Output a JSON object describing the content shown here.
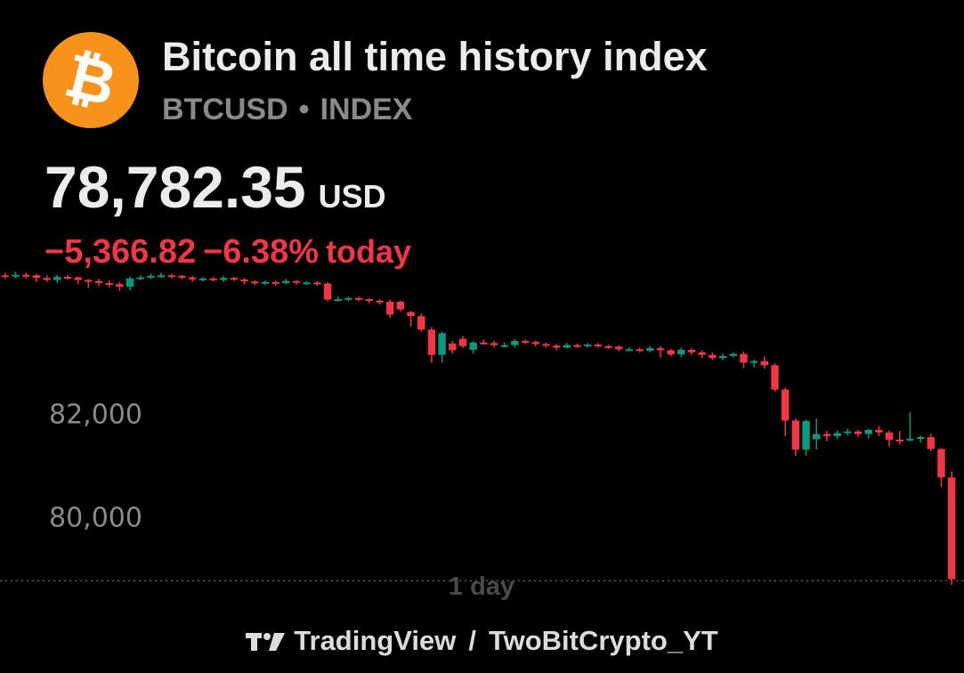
{
  "header": {
    "logo_icon": "bitcoin-icon",
    "logo_glyph": "₿",
    "logo_color": "#f7931a",
    "title": "Bitcoin all time history index",
    "symbol": "BTCUSD",
    "separator": "•",
    "type": "INDEX"
  },
  "quote": {
    "price": "78,782.35",
    "currency": "USD",
    "change": "−5,366.82",
    "change_pct": "−6.38%",
    "period": "today",
    "negative_color": "#f23645"
  },
  "footer": {
    "brand_icon": "tradingview-logo-icon",
    "brand": "TradingView",
    "separator": "/",
    "author": "TwoBitCrypto_YT"
  },
  "chart_data": {
    "type": "candlestick",
    "interval_label": "1 day",
    "ylim": [
      78650,
      84850
    ],
    "yticks": [
      {
        "value": 82000,
        "label": "82,000"
      },
      {
        "value": 80000,
        "label": "80,000"
      }
    ],
    "last_price_line": 78782.35,
    "up_color": "#089981",
    "down_color": "#f23645",
    "candles": [
      [
        84690,
        84670,
        84740,
        84620
      ],
      [
        84670,
        84700,
        84760,
        84630
      ],
      [
        84700,
        84690,
        84740,
        84630
      ],
      [
        84690,
        84640,
        84720,
        84560
      ],
      [
        84640,
        84600,
        84690,
        84560
      ],
      [
        84600,
        84660,
        84700,
        84540
      ],
      [
        84660,
        84650,
        84700,
        84610
      ],
      [
        84650,
        84600,
        84670,
        84520
      ],
      [
        84600,
        84580,
        84620,
        84450
      ],
      [
        84580,
        84540,
        84620,
        84480
      ],
      [
        84540,
        84520,
        84590,
        84460
      ],
      [
        84520,
        84470,
        84560,
        84390
      ],
      [
        84470,
        84630,
        84670,
        84400
      ],
      [
        84630,
        84650,
        84690,
        84590
      ],
      [
        84650,
        84680,
        84720,
        84620
      ],
      [
        84680,
        84690,
        84740,
        84640
      ],
      [
        84690,
        84680,
        84720,
        84630
      ],
      [
        84680,
        84650,
        84700,
        84610
      ],
      [
        84650,
        84610,
        84680,
        84560
      ],
      [
        84610,
        84630,
        84660,
        84570
      ],
      [
        84630,
        84600,
        84660,
        84570
      ],
      [
        84600,
        84640,
        84680,
        84560
      ],
      [
        84640,
        84610,
        84660,
        84580
      ],
      [
        84610,
        84570,
        84640,
        84510
      ],
      [
        84570,
        84540,
        84600,
        84500
      ],
      [
        84540,
        84560,
        84590,
        84500
      ],
      [
        84560,
        84540,
        84590,
        84490
      ],
      [
        84540,
        84580,
        84620,
        84520
      ],
      [
        84580,
        84550,
        84600,
        84510
      ],
      [
        84550,
        84550,
        84580,
        84510
      ],
      [
        84550,
        84530,
        84580,
        84490
      ],
      [
        84530,
        84220,
        84560,
        84190
      ],
      [
        84220,
        84230,
        84280,
        84180
      ],
      [
        84230,
        84250,
        84280,
        84190
      ],
      [
        84250,
        84230,
        84280,
        84190
      ],
      [
        84230,
        84200,
        84250,
        84150
      ],
      [
        84200,
        84180,
        84230,
        84130
      ],
      [
        84180,
        83930,
        84220,
        83870
      ],
      [
        84180,
        84030,
        84200,
        83990
      ],
      [
        83980,
        83900,
        84000,
        83700
      ],
      [
        83900,
        83640,
        83950,
        83600
      ],
      [
        83640,
        83150,
        83690,
        83000
      ],
      [
        83150,
        83570,
        83600,
        83000
      ],
      [
        83370,
        83240,
        83420,
        83180
      ],
      [
        83460,
        83320,
        83520,
        83280
      ],
      [
        83250,
        83390,
        83420,
        83180
      ],
      [
        83390,
        83380,
        83450,
        83350
      ],
      [
        83380,
        83340,
        83420,
        83300
      ],
      [
        83340,
        83340,
        83390,
        83300
      ],
      [
        83340,
        83420,
        83460,
        83290
      ],
      [
        83420,
        83400,
        83450,
        83360
      ],
      [
        83400,
        83360,
        83430,
        83320
      ],
      [
        83360,
        83330,
        83390,
        83290
      ],
      [
        83330,
        83290,
        83360,
        83240
      ],
      [
        83290,
        83340,
        83380,
        83280
      ],
      [
        83340,
        83330,
        83370,
        83290
      ],
      [
        83330,
        83350,
        83380,
        83290
      ],
      [
        83350,
        83320,
        83380,
        83290
      ],
      [
        83320,
        83310,
        83350,
        83270
      ],
      [
        83310,
        83260,
        83330,
        83220
      ],
      [
        83260,
        83260,
        83300,
        83220
      ],
      [
        83260,
        83230,
        83290,
        83200
      ],
      [
        83230,
        83280,
        83320,
        83200
      ],
      [
        83280,
        83240,
        83320,
        83100
      ],
      [
        83240,
        83160,
        83270,
        83120
      ],
      [
        83160,
        83250,
        83290,
        83110
      ],
      [
        83250,
        83200,
        83280,
        83150
      ],
      [
        83200,
        83150,
        83240,
        83090
      ],
      [
        83150,
        83090,
        83200,
        83050
      ],
      [
        83090,
        83130,
        83170,
        83050
      ],
      [
        83130,
        83170,
        83200,
        83100
      ],
      [
        83170,
        83000,
        83210,
        82900
      ],
      [
        83000,
        83030,
        83060,
        82910
      ],
      [
        83030,
        82950,
        83120,
        82880
      ],
      [
        82950,
        82480,
        82990,
        82440
      ],
      [
        82480,
        81880,
        82520,
        81580
      ],
      [
        81880,
        81320,
        81920,
        81200
      ],
      [
        81320,
        81870,
        81900,
        81200
      ],
      [
        81520,
        81620,
        81920,
        81320
      ],
      [
        81620,
        81580,
        81680,
        81480
      ],
      [
        81580,
        81640,
        81690,
        81520
      ],
      [
        81640,
        81670,
        81720,
        81590
      ],
      [
        81670,
        81620,
        81700,
        81560
      ],
      [
        81620,
        81700,
        81720,
        81530
      ],
      [
        81700,
        81650,
        81770,
        81580
      ],
      [
        81650,
        81510,
        81690,
        81380
      ],
      [
        81510,
        81500,
        81680,
        81420
      ],
      [
        81500,
        81530,
        82040,
        81470
      ],
      [
        81530,
        81560,
        81590,
        81450
      ],
      [
        81560,
        81330,
        81620,
        81290
      ],
      [
        81330,
        80780,
        81350,
        80590
      ],
      [
        80780,
        78810,
        80900,
        78700
      ]
    ]
  }
}
